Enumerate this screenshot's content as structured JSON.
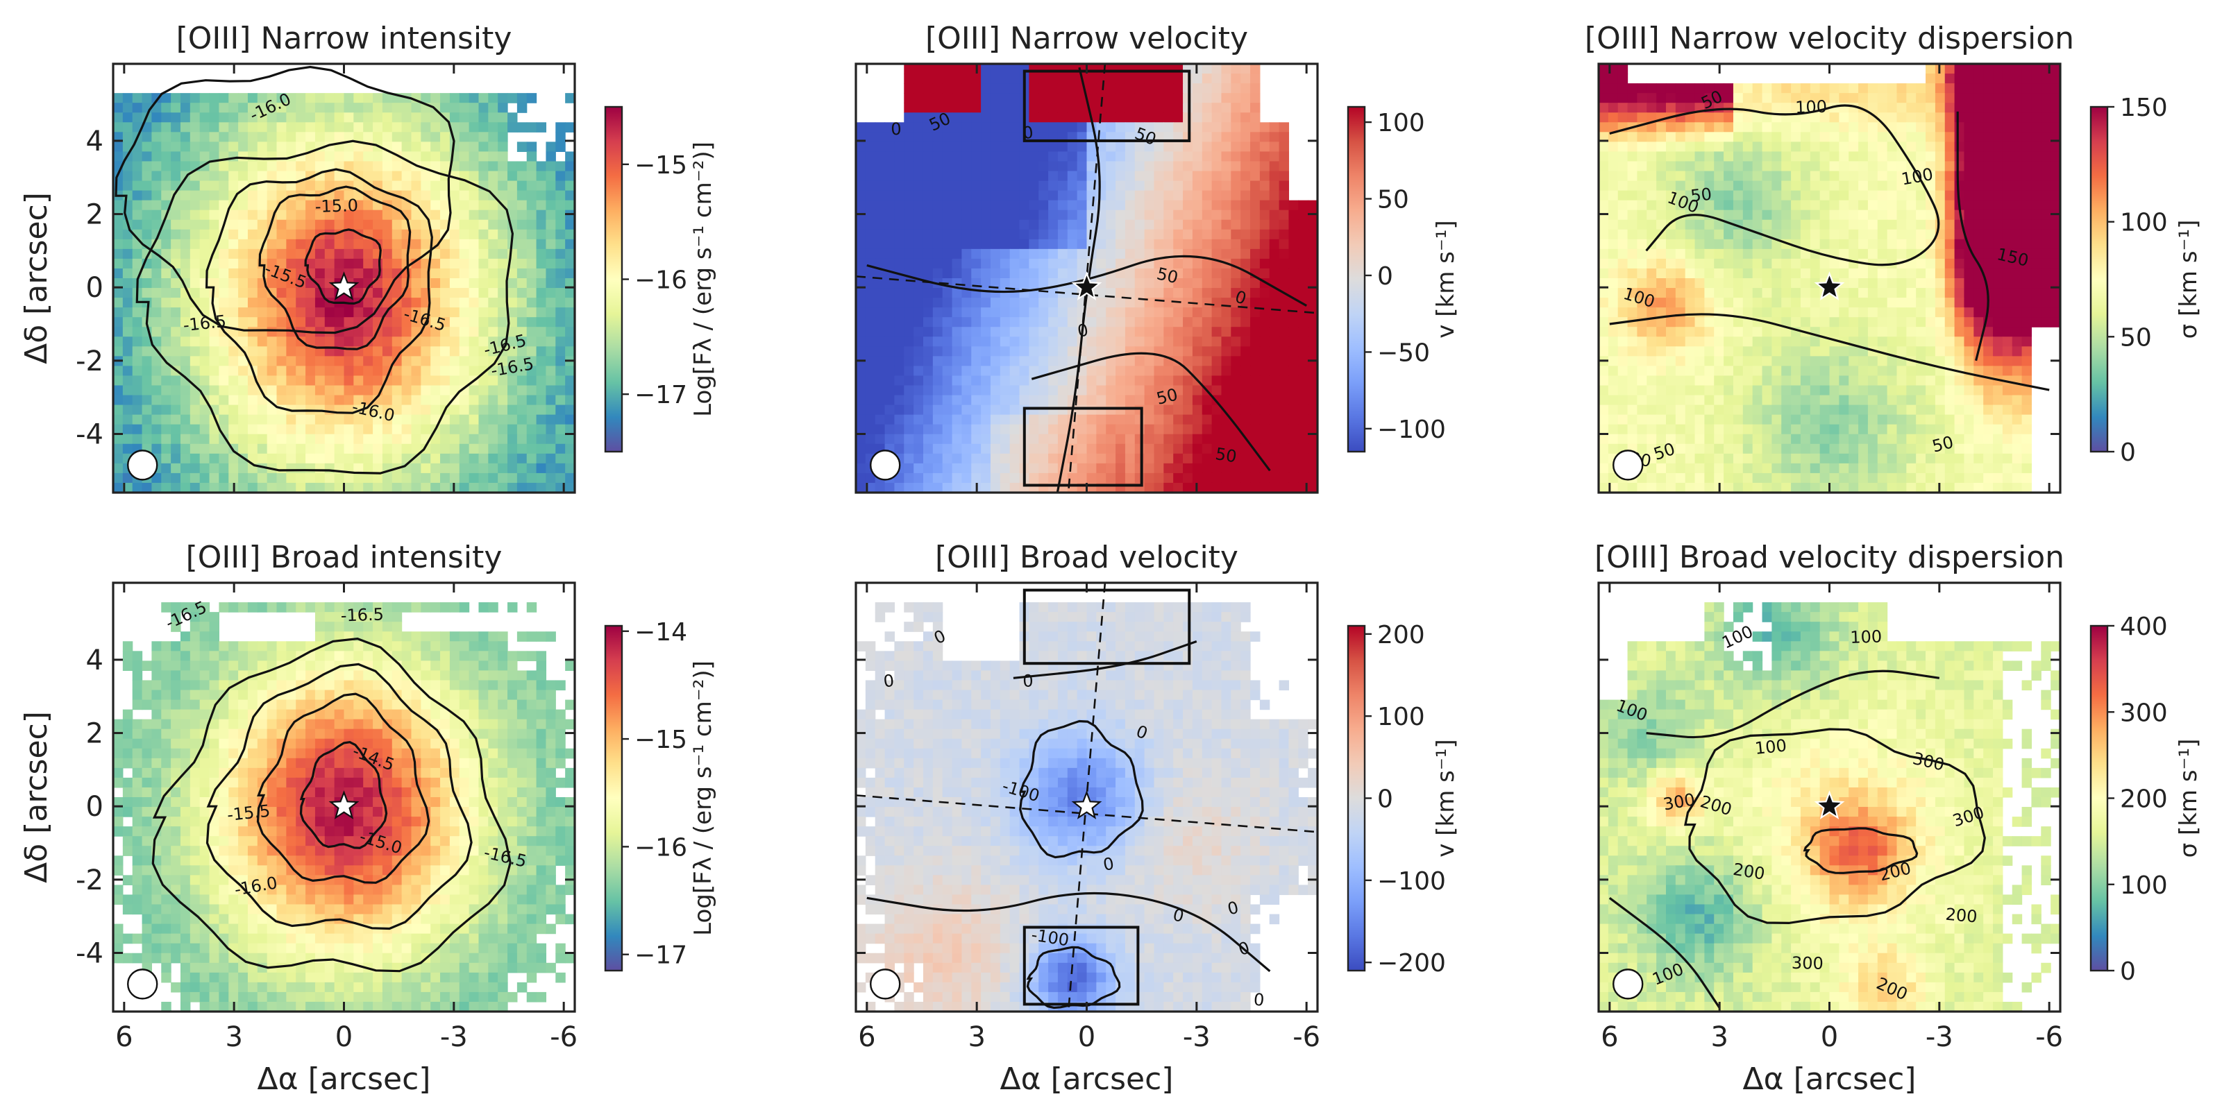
{
  "figure": {
    "xlabel": "Δα [arcsec]",
    "ylabel": "Δδ [arcsec]",
    "x_ticks": [
      "6",
      "3",
      "0",
      "-3",
      "-6"
    ],
    "y_ticks": [
      "4",
      "2",
      "0",
      "-2",
      "-4"
    ],
    "colors": {
      "frame": "#222222",
      "contour": "#111111",
      "star_fill": "#ffffff",
      "star_dark": "#111111",
      "beam": "#ffffff"
    }
  },
  "chart_data": [
    {
      "type": "heatmap",
      "title": "[OIII] Narrow intensity",
      "colormap": "Spectral_r",
      "colorbar": {
        "label": "Log[Fλ / (erg s⁻¹ cm⁻²)]",
        "ticks": [
          "−15",
          "−16",
          "−17"
        ],
        "range": [
          -17.5,
          -14.5
        ]
      },
      "xlim": [
        6.3,
        -6.3
      ],
      "ylim": [
        -5.6,
        6.1
      ],
      "contour_labels": [
        "-16.0",
        "-15.0",
        "-15.5",
        "-16.5",
        "-16.5",
        "-16.5",
        "-16.0",
        "-16.5"
      ],
      "star": "white"
    },
    {
      "type": "heatmap",
      "title": "[OIII] Narrow velocity",
      "colormap": "coolwarm",
      "colorbar": {
        "label": "v [km s⁻¹]",
        "ticks": [
          "100",
          "50",
          "0",
          "−50",
          "−100"
        ],
        "range": [
          -115,
          110
        ]
      },
      "xlim": [
        6.3,
        -6.3
      ],
      "ylim": [
        -5.6,
        6.1
      ],
      "contour_labels": [
        "50",
        "0",
        "50",
        "0",
        "0",
        "0",
        "50",
        "50",
        "50"
      ],
      "boxes": [
        "north",
        "south"
      ],
      "star": "dark"
    },
    {
      "type": "heatmap",
      "title": "[OIII] Narrow velocity dispersion",
      "colormap": "Spectral_r",
      "colorbar": {
        "label": "σ [km s⁻¹]",
        "ticks": [
          "150",
          "100",
          "50",
          "0"
        ],
        "range": [
          0,
          150
        ]
      },
      "xlim": [
        6.3,
        -6.3
      ],
      "ylim": [
        -5.6,
        6.1
      ],
      "contour_labels": [
        "50",
        "100",
        "100",
        "50",
        "100",
        "100",
        "150",
        "50",
        "100",
        "50"
      ],
      "star": "dark"
    },
    {
      "type": "heatmap",
      "title": "[OIII] Broad intensity",
      "colormap": "Spectral_r",
      "colorbar": {
        "label": "Log[Fλ / (erg s⁻¹ cm⁻²)]",
        "ticks": [
          "−14",
          "−15",
          "−16",
          "−17"
        ],
        "range": [
          -17.15,
          -13.95
        ]
      },
      "xlim": [
        6.3,
        -6.3
      ],
      "ylim": [
        -5.6,
        6.1
      ],
      "contour_labels": [
        "-16.5",
        "-16.5",
        "-14.5",
        "-15.5",
        "-15.0",
        "-16.0",
        "-16.5"
      ],
      "star": "white"
    },
    {
      "type": "heatmap",
      "title": "[OIII] Broad velocity",
      "colormap": "coolwarm",
      "colorbar": {
        "label": "v [km s⁻¹]",
        "ticks": [
          "200",
          "100",
          "0",
          "−100",
          "−200"
        ],
        "range": [
          -210,
          210
        ]
      },
      "xlim": [
        6.3,
        -6.3
      ],
      "ylim": [
        -5.6,
        6.1
      ],
      "contour_labels": [
        "0",
        "0",
        "0",
        "0",
        "-100",
        "0",
        "0",
        "0",
        "-100",
        "0",
        "0"
      ],
      "boxes": [
        "north",
        "south"
      ],
      "star": "white"
    },
    {
      "type": "heatmap",
      "title": "[OIII] Broad velocity dispersion",
      "colormap": "Spectral_r",
      "colorbar": {
        "label": "σ [km s⁻¹]",
        "ticks": [
          "400",
          "300",
          "200",
          "100",
          "0"
        ],
        "range": [
          0,
          400
        ]
      },
      "xlim": [
        6.3,
        -6.3
      ],
      "ylim": [
        -5.6,
        6.1
      ],
      "contour_labels": [
        "100",
        "100",
        "100",
        "100",
        "200",
        "300",
        "300",
        "200",
        "200",
        "300",
        "200",
        "100",
        "300",
        "200"
      ],
      "star": "dark"
    }
  ]
}
